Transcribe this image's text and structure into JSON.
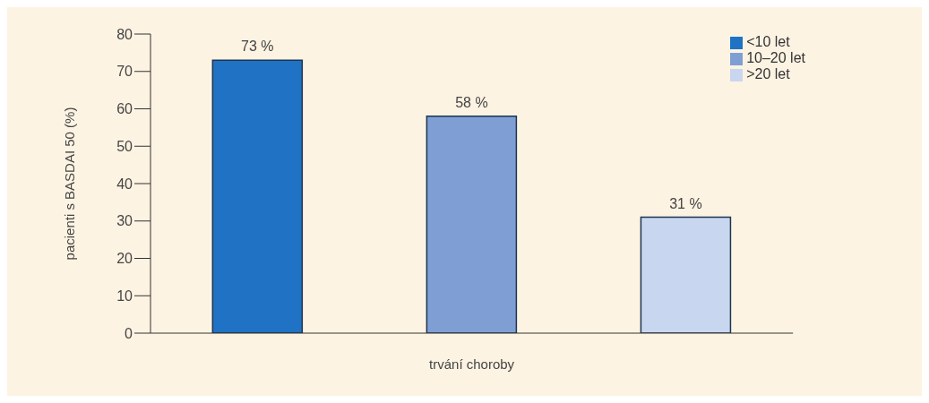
{
  "chart_data": {
    "type": "bar",
    "ylabel": "pacienti s BASDAI 50 (%)",
    "xlabel": "trvání choroby",
    "categories": [
      null,
      null,
      null
    ],
    "stacked": true,
    "series": [
      {
        "name": "<10 let",
        "color": "#1f72c4",
        "values": [
          73,
          null,
          null
        ],
        "value_labels": [
          "73 %",
          null,
          null
        ]
      },
      {
        "name": "10–20 let",
        "color": "#7f9fd4",
        "values": [
          null,
          58,
          null
        ],
        "value_labels": [
          null,
          "58 %",
          null
        ]
      },
      {
        "name": ">20 let",
        "color": "#c9d6f0",
        "values": [
          null,
          null,
          31
        ],
        "value_labels": [
          null,
          null,
          "31 %"
        ]
      }
    ],
    "ylim": [
      0,
      80
    ],
    "yticks": [
      0,
      10,
      20,
      30,
      40,
      50,
      60,
      70,
      80
    ],
    "grid": false,
    "legend": "top right"
  }
}
